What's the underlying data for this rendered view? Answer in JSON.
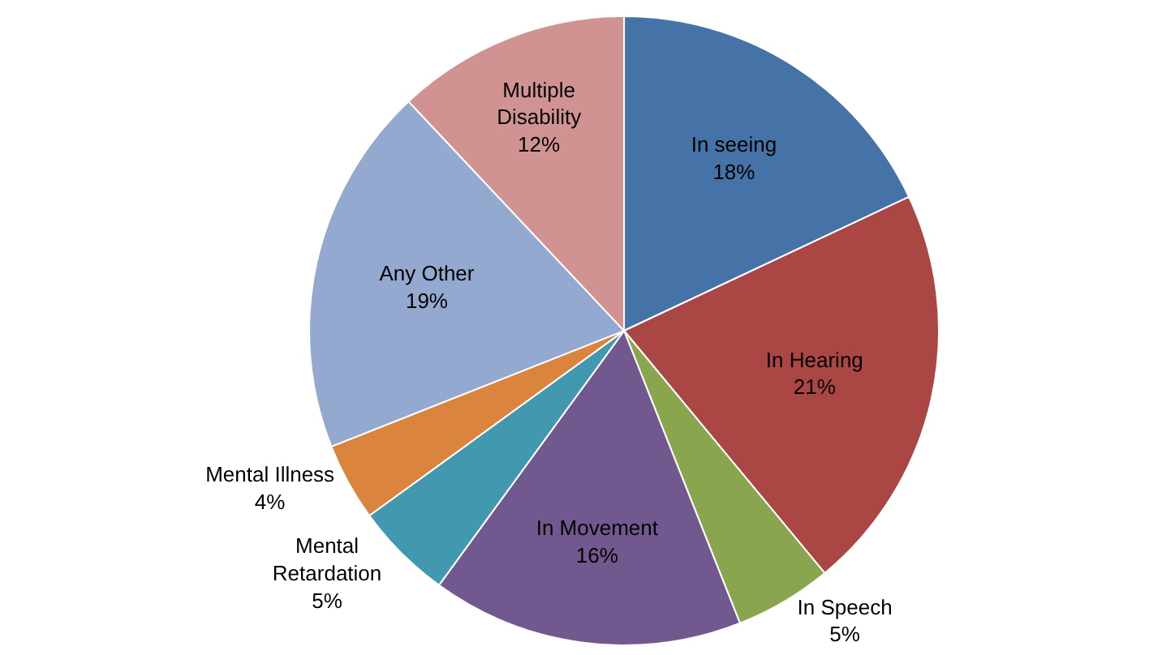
{
  "chart_data": {
    "type": "pie",
    "categories": [
      "In seeing",
      "In Hearing",
      "In Speech",
      "In Movement",
      "Mental Retardation",
      "Mental Illness",
      "Any Other",
      "Multiple Disability"
    ],
    "values": [
      18,
      21,
      5,
      16,
      5,
      4,
      19,
      12
    ],
    "value_labels": [
      "18%",
      "21%",
      "5%",
      "16%",
      "5%",
      "4%",
      "19%",
      "12%"
    ],
    "colors": [
      "#4572a7",
      "#aa4643",
      "#89a54e",
      "#71588f",
      "#4198af",
      "#db843d",
      "#93a9cf",
      "#d19392"
    ],
    "legend": false
  }
}
